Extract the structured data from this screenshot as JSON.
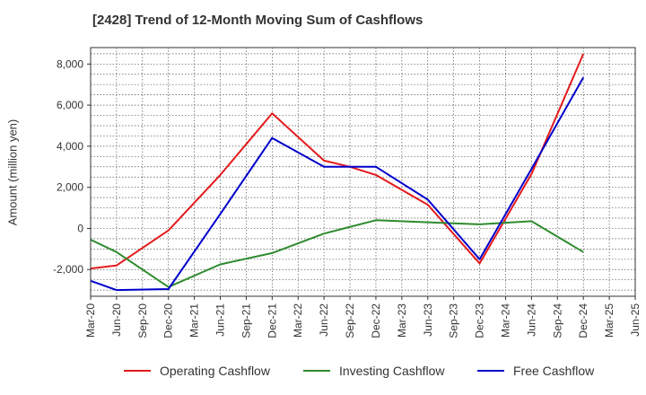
{
  "chart_data": {
    "type": "line",
    "title": "[2428]  Trend of 12-Month Moving Sum of Cashflows",
    "xlabel": "",
    "ylabel": "Amount (million yen)",
    "x": [
      "Mar-20",
      "Jun-20",
      "Sep-20",
      "Dec-20",
      "Mar-21",
      "Jun-21",
      "Sep-21",
      "Dec-21",
      "Mar-22",
      "Jun-22",
      "Sep-22",
      "Dec-22",
      "Mar-23",
      "Jun-23",
      "Sep-23",
      "Dec-23",
      "Mar-24",
      "Jun-24",
      "Sep-24",
      "Dec-24",
      "Mar-25",
      "Jun-25"
    ],
    "ylim": [
      -3300,
      8800
    ],
    "yticks": [
      -2000,
      0,
      2000,
      4000,
      6000,
      8000
    ],
    "ytick_labels": [
      "-2,000",
      "0",
      "2,000",
      "4,000",
      "6,000",
      "8,000"
    ],
    "grid": true,
    "legend_position": "bottom",
    "series": [
      {
        "name": "Operating Cashflow",
        "color": "#e41a1c",
        "values": [
          -1950,
          -1800,
          null,
          -100,
          null,
          2600,
          null,
          5600,
          null,
          3300,
          3000,
          2600,
          null,
          1150,
          null,
          -1700,
          null,
          2650,
          null,
          8500,
          null,
          null
        ]
      },
      {
        "name": "Investing Cashflow",
        "color": "#2e8b2e",
        "values": [
          -550,
          -1150,
          null,
          -2850,
          null,
          -1750,
          null,
          -1200,
          null,
          -250,
          null,
          400,
          null,
          300,
          null,
          200,
          null,
          350,
          null,
          -1150,
          null,
          null
        ]
      },
      {
        "name": "Free Cashflow",
        "color": "#0000cc",
        "values": [
          -2550,
          -3000,
          null,
          -2950,
          null,
          700,
          null,
          4400,
          null,
          3000,
          3000,
          3000,
          null,
          1400,
          null,
          -1500,
          null,
          2900,
          null,
          7350,
          null,
          null
        ]
      }
    ]
  }
}
